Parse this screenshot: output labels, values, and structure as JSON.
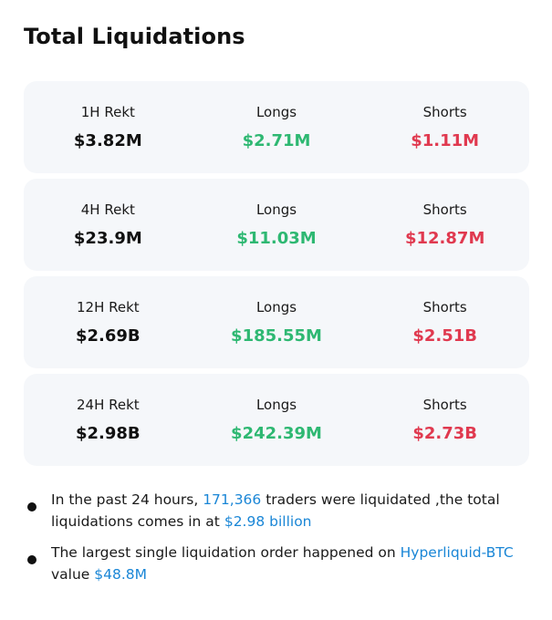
{
  "title": "Total Liquidations",
  "colors": {
    "card_bg": "#f5f7fa",
    "longs": "#2eb872",
    "shorts": "#e0394f",
    "highlight": "#1a86d6"
  },
  "cards": [
    {
      "period_label": "1H Rekt",
      "total": "$3.82M",
      "longs_label": "Longs",
      "longs": "$2.71M",
      "shorts_label": "Shorts",
      "shorts": "$1.11M"
    },
    {
      "period_label": "4H Rekt",
      "total": "$23.9M",
      "longs_label": "Longs",
      "longs": "$11.03M",
      "shorts_label": "Shorts",
      "shorts": "$12.87M"
    },
    {
      "period_label": "12H Rekt",
      "total": "$2.69B",
      "longs_label": "Longs",
      "longs": "$185.55M",
      "shorts_label": "Shorts",
      "shorts": "$2.51B"
    },
    {
      "period_label": "24H Rekt",
      "total": "$2.98B",
      "longs_label": "Longs",
      "longs": "$242.39M",
      "shorts_label": "Shorts",
      "shorts": "$2.73B"
    }
  ],
  "notes": [
    {
      "text_1": "In the past 24 hours, ",
      "traders_count": "171,366",
      "text_2": " traders were liquidated ,the total liquidations comes in at ",
      "total_amount": "$2.98 billion"
    },
    {
      "text_1": "The largest single liquidation order happened on ",
      "market": "Hyperliquid-BTC",
      "text_2": " value ",
      "value": "$48.8M"
    }
  ]
}
